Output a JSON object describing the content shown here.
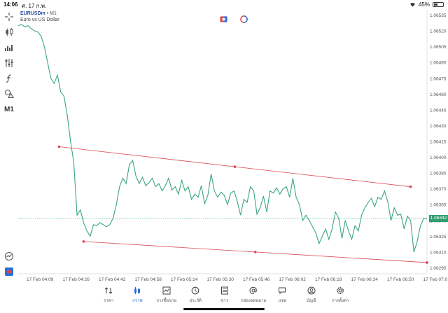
{
  "status_bar": {
    "time": "14:06",
    "date": "ศ. 17 ก.พ.",
    "battery": "45%",
    "battery_level": 0.45
  },
  "symbol": {
    "name": "EURUSDm",
    "timeframe": "M1",
    "description": "Euro vs US Dollar"
  },
  "toolbar": {
    "timeframe_label": "M1",
    "icons": [
      "crosshair-icon",
      "candlestick-icon",
      "bar-volume-icon",
      "indicators-icon",
      "function-icon",
      "shapes-icon",
      "timeframe-m1",
      "alerts-icon",
      "logo-icon"
    ]
  },
  "current_price": "1.06342",
  "chart_data": {
    "type": "line",
    "title": "",
    "price_axis": [
      "1.06535",
      "1.06520",
      "1.06505",
      "1.06490",
      "1.06475",
      "1.06460",
      "1.06445",
      "1.06430",
      "1.06415",
      "1.06400",
      "1.06385",
      "1.06370",
      "1.06355",
      "1.06340",
      "1.06325",
      "1.06310",
      "1.06295"
    ],
    "time_axis": [
      "17 Feb 04:09",
      "17 Feb 04:26",
      "17 Feb 04:42",
      "17 Feb 04:58",
      "17 Feb 05:14",
      "17 Feb 05:30",
      "17 Feb 05:46",
      "17 Feb 06:02",
      "17 Feb 06:18",
      "17 Feb 06:34",
      "17 Feb 06:50",
      "17 Feb 07:0"
    ],
    "ylim": [
      1.0629,
      1.0654
    ],
    "grid": false,
    "line_color": "#3aa67a",
    "trendline_color": "#d9474f",
    "series": [
      {
        "values": [
          1.06525,
          1.06526,
          1.06524,
          1.06525,
          1.06522,
          1.0652,
          1.06519,
          1.06515,
          1.06505,
          1.0649,
          1.06475,
          1.0647,
          1.06478,
          1.06462,
          1.06458,
          1.0644,
          1.06415,
          1.06395,
          1.06345,
          1.0635,
          1.06338,
          1.0633,
          1.06325,
          1.06336,
          1.06335,
          1.06338,
          1.06336,
          1.06334,
          1.06336,
          1.06342,
          1.06355,
          1.06372,
          1.0638,
          1.06375,
          1.06393,
          1.06397,
          1.06382,
          1.06375,
          1.06381,
          1.06373,
          1.06376,
          1.0638,
          1.06372,
          1.06375,
          1.06368,
          1.06373,
          1.0638,
          1.06369,
          1.06372,
          1.06365,
          1.06378,
          1.06368,
          1.06372,
          1.0636,
          1.06365,
          1.06362,
          1.06373,
          1.06356,
          1.06364,
          1.06384,
          1.06368,
          1.06362,
          1.06367,
          1.06364,
          1.06355,
          1.06366,
          1.06368,
          1.06358,
          1.06345,
          1.0636,
          1.06357,
          1.06372,
          1.06368,
          1.06346,
          1.06352,
          1.06363,
          1.06348,
          1.06368,
          1.06366,
          1.06371,
          1.06365,
          1.0637,
          1.06372,
          1.06362,
          1.0638,
          1.06362,
          1.06355,
          1.0634,
          1.06345,
          1.0634,
          1.06334,
          1.06328,
          1.06318,
          1.06325,
          1.06332,
          1.06322,
          1.06332,
          1.06348,
          1.06342,
          1.06323,
          1.0634,
          1.0633,
          1.06322,
          1.06335,
          1.0633,
          1.06345,
          1.06352,
          1.06357,
          1.06361,
          1.06353,
          1.06362,
          1.0636,
          1.06368,
          1.06358,
          1.0634,
          1.06352,
          1.06345,
          1.06346,
          1.06332,
          1.06344,
          1.0634,
          1.0631,
          1.0632,
          1.06335,
          1.06342,
          1.06342
        ]
      }
    ],
    "trendlines": [
      {
        "x1": 0.1,
        "y1": 1.0641,
        "x2": 0.96,
        "y2": 1.06372
      },
      {
        "x1": 0.16,
        "y1": 1.0632,
        "x2": 1.0,
        "y2": 1.063
      }
    ]
  },
  "nav": [
    {
      "label": "ราคา",
      "icon": "quotes-icon"
    },
    {
      "label": "กราฟ",
      "icon": "chart-icon",
      "active": true
    },
    {
      "label": "การซื้อขาย",
      "icon": "trade-icon"
    },
    {
      "label": "ประวัติ",
      "icon": "history-icon"
    },
    {
      "label": "ข่าว",
      "icon": "news-icon"
    },
    {
      "label": "กล่องจดหมาย",
      "icon": "mailbox-icon"
    },
    {
      "label": "แชท",
      "icon": "chat-icon"
    },
    {
      "label": "บัญชี",
      "icon": "account-icon"
    },
    {
      "label": "การตั้งค่า",
      "icon": "settings-icon"
    }
  ]
}
